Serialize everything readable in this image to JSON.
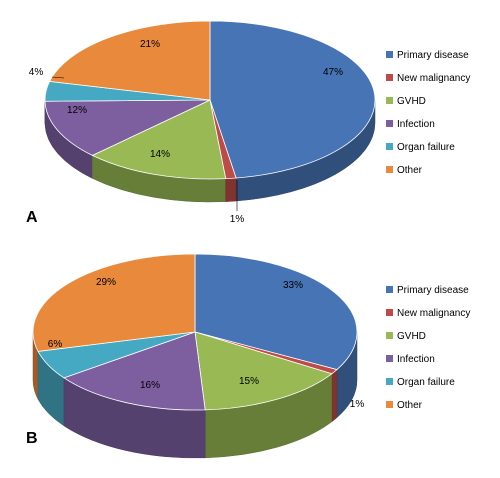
{
  "colors": {
    "Primary disease": "#4674b4",
    "New malignancy": "#be4b48",
    "GVHD": "#98b954",
    "Infection": "#7d5fa0",
    "Organ failure": "#46a9c4",
    "Other": "#e8893c"
  },
  "chart_data": [
    {
      "type": "pie",
      "panel_label": "A",
      "legend_position": "right",
      "categories": [
        "Primary disease",
        "New malignancy",
        "GVHD",
        "Infection",
        "Organ failure",
        "Other"
      ],
      "values": [
        47,
        1,
        14,
        12,
        4,
        21
      ],
      "value_labels": [
        "47%",
        "1%",
        "14%",
        "12%",
        "4%",
        "21%"
      ]
    },
    {
      "type": "pie",
      "panel_label": "B",
      "legend_position": "right",
      "categories": [
        "Primary disease",
        "New malignancy",
        "GVHD",
        "Infection",
        "Organ failure",
        "Other"
      ],
      "values": [
        33,
        1,
        15,
        16,
        6,
        29
      ],
      "value_labels": [
        "33%",
        "1%",
        "15%",
        "16%",
        "6%",
        "29%"
      ]
    }
  ]
}
